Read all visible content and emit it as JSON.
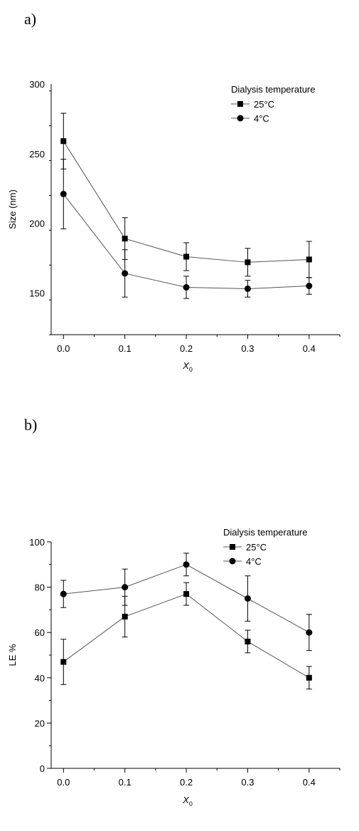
{
  "chart_data": [
    {
      "type": "line",
      "panel_label": "a)",
      "title": "",
      "xlabel": "X",
      "xlabel_sub": "0",
      "ylabel": "Size (nm)",
      "x": [
        0.0,
        0.1,
        0.2,
        0.3,
        0.4
      ],
      "xticks": [
        "0.0",
        "0.1",
        "0.2",
        "0.3",
        "0.4"
      ],
      "xlim": [
        -0.02,
        0.45
      ],
      "ylim": [
        120,
        300
      ],
      "yticks": [
        "150",
        "200",
        "250",
        "300"
      ],
      "yticks_values": [
        150,
        200,
        250,
        300
      ],
      "legend_title": "Dialysis temperature",
      "legend_position": "top-right",
      "series": [
        {
          "name": "25°C",
          "marker": "square",
          "values": [
            259,
            189,
            176,
            172,
            174
          ],
          "errors": [
            20,
            15,
            10,
            10,
            13
          ]
        },
        {
          "name": "4°C",
          "marker": "circle",
          "values": [
            221,
            164,
            154,
            153,
            155
          ],
          "errors": [
            25,
            17,
            8,
            6,
            6
          ]
        }
      ]
    },
    {
      "type": "line",
      "panel_label": "b)",
      "title": "",
      "xlabel": "X",
      "xlabel_sub": "0",
      "ylabel": "LE %",
      "x": [
        0.0,
        0.1,
        0.2,
        0.3,
        0.4
      ],
      "xticks": [
        "0.0",
        "0.1",
        "0.2",
        "0.3",
        "0.4"
      ],
      "xlim": [
        -0.02,
        0.45
      ],
      "ylim": [
        0,
        100
      ],
      "yticks": [
        "0",
        "20",
        "40",
        "60",
        "80",
        "100"
      ],
      "yticks_values": [
        0,
        20,
        40,
        60,
        80,
        100
      ],
      "legend_title": "Dialysis temperature",
      "legend_position": "top-right",
      "series": [
        {
          "name": "25°C",
          "marker": "square",
          "values": [
            47,
            67,
            77,
            56,
            40
          ],
          "errors": [
            10,
            9,
            5,
            5,
            5
          ]
        },
        {
          "name": "4°C",
          "marker": "circle",
          "values": [
            77,
            80,
            90,
            75,
            60
          ],
          "errors": [
            6,
            8,
            5,
            10,
            8
          ]
        }
      ]
    }
  ]
}
